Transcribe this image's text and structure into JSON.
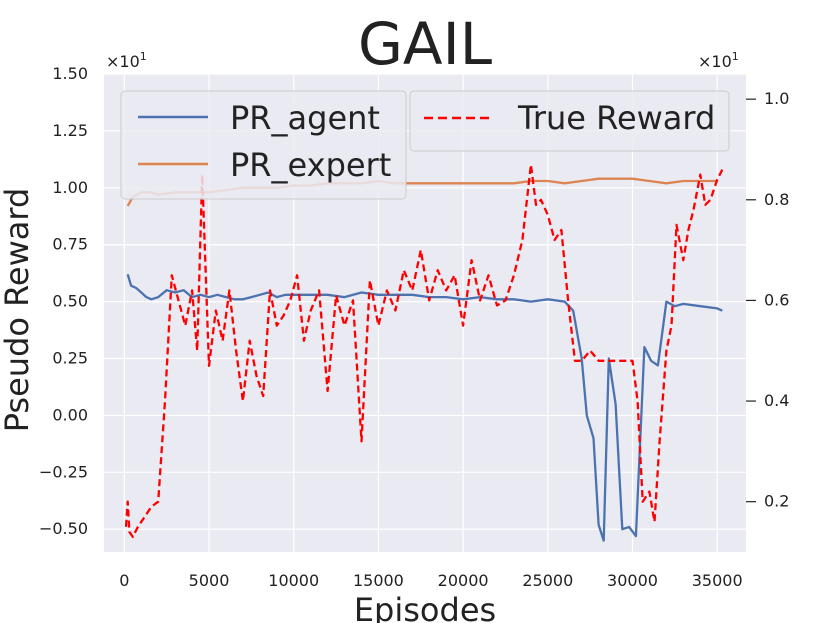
{
  "chart_data": {
    "type": "line",
    "title": "GAIL",
    "xlabel": "Episodes",
    "ylabel": "Pseudo Reward",
    "xlim": [
      -1200,
      36700
    ],
    "ylim": [
      -0.6,
      1.5
    ],
    "y2lim": [
      0.1,
      1.05
    ],
    "multiplier_left": "×10",
    "multiplier_left_exp": "1",
    "multiplier_right": "×10",
    "multiplier_right_exp": "1",
    "x_ticks": [
      0,
      5000,
      10000,
      15000,
      20000,
      25000,
      30000,
      35000
    ],
    "x_tick_labels": [
      "0",
      "5000",
      "10000",
      "15000",
      "20000",
      "25000",
      "30000",
      "35000"
    ],
    "y_ticks": [
      -0.5,
      -0.25,
      0,
      0.25,
      0.5,
      0.75,
      1.0,
      1.25,
      1.5
    ],
    "y_tick_labels": [
      "−0.50",
      "−0.25",
      "0.00",
      "0.25",
      "0.50",
      "0.75",
      "1.00",
      "1.25",
      "1.50"
    ],
    "y2_ticks": [
      0.2,
      0.4,
      0.6,
      0.8,
      1.0
    ],
    "y2_tick_labels": [
      "0.2",
      "0.4",
      "0.6",
      "0.8",
      "1.0"
    ],
    "grid": true,
    "legend_placement": "top",
    "series": [
      {
        "name": "PR_agent",
        "axis": "left",
        "color": "#4c72b0",
        "dash": "solid",
        "x": [
          200,
          400,
          700,
          1000,
          1300,
          1600,
          2000,
          2500,
          3000,
          3500,
          4000,
          4500,
          5000,
          5500,
          6000,
          6500,
          7000,
          7500,
          8000,
          8500,
          9000,
          9500,
          10000,
          11000,
          12000,
          13000,
          14000,
          15000,
          16000,
          17000,
          18000,
          19000,
          20000,
          21000,
          22000,
          23000,
          24000,
          25000,
          26000,
          26500,
          27000,
          27300,
          27700,
          28000,
          28300,
          28600,
          29000,
          29400,
          29800,
          30200,
          30700,
          31100,
          31500,
          32000,
          32500,
          33000,
          34000,
          35000,
          35300
        ],
        "y": [
          0.62,
          0.57,
          0.56,
          0.54,
          0.52,
          0.51,
          0.52,
          0.55,
          0.54,
          0.55,
          0.52,
          0.53,
          0.52,
          0.53,
          0.52,
          0.51,
          0.51,
          0.52,
          0.53,
          0.54,
          0.52,
          0.53,
          0.53,
          0.53,
          0.53,
          0.52,
          0.54,
          0.53,
          0.53,
          0.53,
          0.52,
          0.52,
          0.51,
          0.52,
          0.51,
          0.51,
          0.5,
          0.51,
          0.5,
          0.46,
          0.25,
          0.0,
          -0.1,
          -0.48,
          -0.55,
          0.25,
          0.05,
          -0.5,
          -0.49,
          -0.53,
          0.3,
          0.24,
          0.22,
          0.5,
          0.48,
          0.49,
          0.48,
          0.47,
          0.46
        ]
      },
      {
        "name": "PR_expert",
        "axis": "left",
        "color": "#dd8452",
        "dash": "solid",
        "x": [
          200,
          500,
          1000,
          1500,
          2000,
          3000,
          4000,
          5000,
          6000,
          7000,
          8000,
          9000,
          10000,
          11000,
          12000,
          13000,
          14000,
          15000,
          16000,
          17000,
          18000,
          19000,
          20000,
          21000,
          22000,
          23000,
          24000,
          25000,
          26000,
          27000,
          28000,
          29000,
          30000,
          31000,
          32000,
          33000,
          34000,
          35000
        ],
        "y": [
          0.92,
          0.96,
          0.98,
          0.98,
          0.97,
          0.98,
          0.98,
          0.98,
          0.99,
          1.0,
          1.0,
          1.0,
          1.01,
          1.01,
          1.02,
          1.02,
          1.02,
          1.03,
          1.02,
          1.02,
          1.02,
          1.02,
          1.02,
          1.02,
          1.02,
          1.02,
          1.03,
          1.03,
          1.02,
          1.03,
          1.04,
          1.04,
          1.04,
          1.03,
          1.02,
          1.03,
          1.03,
          1.03
        ]
      },
      {
        "name": "True Reward",
        "axis": "right",
        "color": "#ff0000",
        "dash": "dashed",
        "x": [
          100,
          200,
          300,
          500,
          800,
          1200,
          1600,
          2000,
          2400,
          2800,
          3200,
          3600,
          4000,
          4300,
          4600,
          5000,
          5400,
          5800,
          6200,
          6600,
          7000,
          7400,
          7800,
          8200,
          8600,
          9000,
          9400,
          9800,
          10200,
          10600,
          11000,
          11500,
          12000,
          12500,
          13000,
          13500,
          14000,
          14500,
          15000,
          15500,
          16000,
          16500,
          17000,
          17500,
          18000,
          18500,
          19000,
          19500,
          20000,
          20500,
          21000,
          21500,
          22000,
          22500,
          23000,
          23500,
          24000,
          24300,
          24600,
          25000,
          25400,
          25800,
          26200,
          26600,
          27000,
          27500,
          28000,
          28500,
          29000,
          29500,
          30000,
          30300,
          30600,
          31000,
          31300,
          31600,
          32000,
          32300,
          32600,
          33000,
          33300,
          33600,
          34000,
          34300,
          34600,
          35000,
          35300
        ],
        "y": [
          0.15,
          0.2,
          0.14,
          0.13,
          0.15,
          0.17,
          0.19,
          0.2,
          0.4,
          0.65,
          0.6,
          0.55,
          0.62,
          0.5,
          0.85,
          0.47,
          0.58,
          0.52,
          0.62,
          0.5,
          0.4,
          0.52,
          0.45,
          0.41,
          0.62,
          0.55,
          0.57,
          0.6,
          0.65,
          0.52,
          0.58,
          0.62,
          0.42,
          0.61,
          0.55,
          0.6,
          0.32,
          0.64,
          0.55,
          0.62,
          0.58,
          0.66,
          0.62,
          0.7,
          0.6,
          0.66,
          0.62,
          0.65,
          0.55,
          0.68,
          0.6,
          0.65,
          0.59,
          0.6,
          0.65,
          0.72,
          0.87,
          0.79,
          0.8,
          0.77,
          0.72,
          0.74,
          0.6,
          0.48,
          0.48,
          0.5,
          0.48,
          0.48,
          0.48,
          0.48,
          0.48,
          0.4,
          0.2,
          0.22,
          0.16,
          0.32,
          0.5,
          0.55,
          0.75,
          0.68,
          0.74,
          0.78,
          0.85,
          0.79,
          0.8,
          0.84,
          0.86
        ]
      }
    ]
  }
}
